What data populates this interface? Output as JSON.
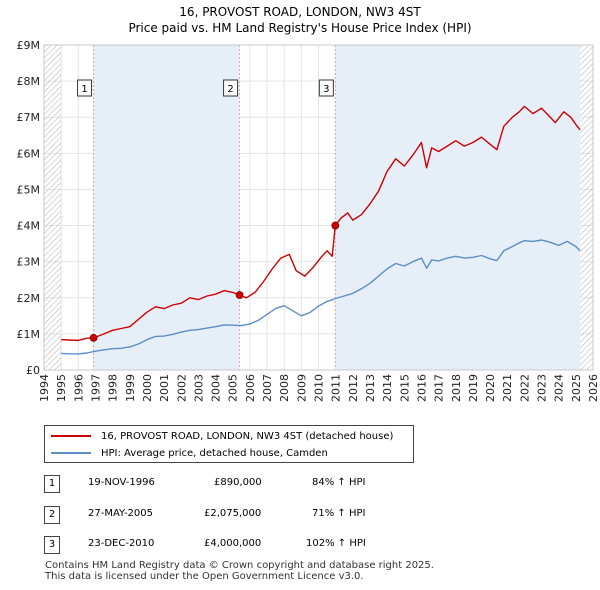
{
  "header": {
    "title": "16, PROVOST ROAD, LONDON, NW3 4ST",
    "subtitle": "Price paid vs. HM Land Registry's House Price Index (HPI)"
  },
  "colors": {
    "property_line": "#cc0000",
    "hpi_line": "#5b8ec8",
    "marker_line": "#e8a0a0",
    "shade": "#e6eef8",
    "grid": "#e4e4e4",
    "hatch": "#b0b0b0"
  },
  "chart_data": {
    "type": "line",
    "title": "16, PROVOST ROAD, LONDON, NW3 4ST",
    "subtitle": "Price paid vs. HM Land Registry's House Price Index (HPI)",
    "xlim": [
      1994,
      2026
    ],
    "ylim": [
      0,
      9000000
    ],
    "x_ticks": [
      "1994",
      "1995",
      "1996",
      "1997",
      "1998",
      "1999",
      "2000",
      "2001",
      "2002",
      "2003",
      "2004",
      "2005",
      "2006",
      "2007",
      "2008",
      "2009",
      "2010",
      "2011",
      "2012",
      "2013",
      "2014",
      "2015",
      "2016",
      "2017",
      "2018",
      "2019",
      "2020",
      "2021",
      "2022",
      "2023",
      "2024",
      "2025",
      "2026"
    ],
    "y_ticks": [
      {
        "value": 0,
        "label": "£0"
      },
      {
        "value": 1000000,
        "label": "£1M"
      },
      {
        "value": 2000000,
        "label": "£2M"
      },
      {
        "value": 3000000,
        "label": "£3M"
      },
      {
        "value": 4000000,
        "label": "£4M"
      },
      {
        "value": 5000000,
        "label": "£5M"
      },
      {
        "value": 6000000,
        "label": "£6M"
      },
      {
        "value": 7000000,
        "label": "£7M"
      },
      {
        "value": 8000000,
        "label": "£8M"
      },
      {
        "value": 9000000,
        "label": "£9M"
      }
    ],
    "data_start": 1995.0,
    "data_end": 2025.25,
    "series": [
      {
        "name": "16, PROVOST ROAD, LONDON, NW3 4ST (detached house)",
        "color": "#cc0000",
        "points": [
          [
            1995.0,
            840000
          ],
          [
            1995.5,
            830000
          ],
          [
            1996.0,
            820000
          ],
          [
            1996.5,
            880000
          ],
          [
            1996.89,
            890000
          ],
          [
            1997.5,
            1000000
          ],
          [
            1998.0,
            1100000
          ],
          [
            1998.5,
            1150000
          ],
          [
            1999.0,
            1200000
          ],
          [
            1999.5,
            1400000
          ],
          [
            2000.0,
            1600000
          ],
          [
            2000.5,
            1750000
          ],
          [
            2001.0,
            1700000
          ],
          [
            2001.5,
            1800000
          ],
          [
            2002.0,
            1850000
          ],
          [
            2002.5,
            2000000
          ],
          [
            2003.0,
            1950000
          ],
          [
            2003.5,
            2050000
          ],
          [
            2004.0,
            2100000
          ],
          [
            2004.5,
            2200000
          ],
          [
            2005.0,
            2150000
          ],
          [
            2005.4,
            2075000
          ],
          [
            2005.8,
            2000000
          ],
          [
            2006.3,
            2150000
          ],
          [
            2006.8,
            2450000
          ],
          [
            2007.3,
            2800000
          ],
          [
            2007.8,
            3100000
          ],
          [
            2008.3,
            3200000
          ],
          [
            2008.7,
            2750000
          ],
          [
            2009.2,
            2600000
          ],
          [
            2009.7,
            2850000
          ],
          [
            2010.2,
            3150000
          ],
          [
            2010.5,
            3300000
          ],
          [
            2010.8,
            3150000
          ],
          [
            2010.98,
            4000000
          ],
          [
            2011.3,
            4200000
          ],
          [
            2011.7,
            4350000
          ],
          [
            2012.0,
            4150000
          ],
          [
            2012.5,
            4300000
          ],
          [
            2013.0,
            4600000
          ],
          [
            2013.5,
            4950000
          ],
          [
            2014.0,
            5500000
          ],
          [
            2014.5,
            5850000
          ],
          [
            2015.0,
            5650000
          ],
          [
            2015.5,
            5950000
          ],
          [
            2016.0,
            6300000
          ],
          [
            2016.3,
            5600000
          ],
          [
            2016.6,
            6150000
          ],
          [
            2017.0,
            6050000
          ],
          [
            2017.5,
            6200000
          ],
          [
            2018.0,
            6350000
          ],
          [
            2018.5,
            6200000
          ],
          [
            2019.0,
            6300000
          ],
          [
            2019.5,
            6450000
          ],
          [
            2020.0,
            6250000
          ],
          [
            2020.4,
            6100000
          ],
          [
            2020.8,
            6750000
          ],
          [
            2021.3,
            7000000
          ],
          [
            2021.7,
            7150000
          ],
          [
            2022.0,
            7300000
          ],
          [
            2022.5,
            7100000
          ],
          [
            2023.0,
            7250000
          ],
          [
            2023.4,
            7050000
          ],
          [
            2023.8,
            6850000
          ],
          [
            2024.3,
            7150000
          ],
          [
            2024.7,
            7000000
          ],
          [
            2025.0,
            6800000
          ],
          [
            2025.25,
            6650000
          ]
        ]
      },
      {
        "name": "HPI: Average price, detached house, Camden",
        "color": "#5b8ec8",
        "points": [
          [
            1995.0,
            460000
          ],
          [
            1995.5,
            450000
          ],
          [
            1996.0,
            445000
          ],
          [
            1996.5,
            470000
          ],
          [
            1997.0,
            520000
          ],
          [
            1997.5,
            560000
          ],
          [
            1998.0,
            590000
          ],
          [
            1998.5,
            600000
          ],
          [
            1999.0,
            640000
          ],
          [
            1999.5,
            720000
          ],
          [
            2000.0,
            840000
          ],
          [
            2000.5,
            930000
          ],
          [
            2001.0,
            940000
          ],
          [
            2001.5,
            990000
          ],
          [
            2002.0,
            1050000
          ],
          [
            2002.5,
            1100000
          ],
          [
            2003.0,
            1120000
          ],
          [
            2003.5,
            1160000
          ],
          [
            2004.0,
            1200000
          ],
          [
            2004.5,
            1250000
          ],
          [
            2005.0,
            1240000
          ],
          [
            2005.5,
            1230000
          ],
          [
            2006.0,
            1270000
          ],
          [
            2006.5,
            1380000
          ],
          [
            2007.0,
            1540000
          ],
          [
            2007.5,
            1700000
          ],
          [
            2008.0,
            1780000
          ],
          [
            2008.5,
            1640000
          ],
          [
            2009.0,
            1500000
          ],
          [
            2009.5,
            1590000
          ],
          [
            2010.0,
            1770000
          ],
          [
            2010.5,
            1900000
          ],
          [
            2011.0,
            1980000
          ],
          [
            2011.5,
            2050000
          ],
          [
            2012.0,
            2120000
          ],
          [
            2012.5,
            2250000
          ],
          [
            2013.0,
            2400000
          ],
          [
            2013.5,
            2600000
          ],
          [
            2014.0,
            2800000
          ],
          [
            2014.5,
            2950000
          ],
          [
            2015.0,
            2880000
          ],
          [
            2015.5,
            3000000
          ],
          [
            2016.0,
            3100000
          ],
          [
            2016.3,
            2820000
          ],
          [
            2016.6,
            3050000
          ],
          [
            2017.0,
            3020000
          ],
          [
            2017.5,
            3100000
          ],
          [
            2018.0,
            3150000
          ],
          [
            2018.5,
            3100000
          ],
          [
            2019.0,
            3120000
          ],
          [
            2019.5,
            3170000
          ],
          [
            2020.0,
            3080000
          ],
          [
            2020.4,
            3030000
          ],
          [
            2020.8,
            3300000
          ],
          [
            2021.3,
            3420000
          ],
          [
            2021.7,
            3520000
          ],
          [
            2022.0,
            3580000
          ],
          [
            2022.5,
            3560000
          ],
          [
            2023.0,
            3600000
          ],
          [
            2023.5,
            3540000
          ],
          [
            2024.0,
            3450000
          ],
          [
            2024.5,
            3560000
          ],
          [
            2025.0,
            3420000
          ],
          [
            2025.25,
            3300000
          ]
        ]
      }
    ],
    "sales": [
      {
        "label": "1",
        "x": 1996.89,
        "y": 890000
      },
      {
        "label": "2",
        "x": 2005.4,
        "y": 2075000
      },
      {
        "label": "3",
        "x": 2010.98,
        "y": 4000000
      }
    ]
  },
  "legend": {
    "property": "16, PROVOST ROAD, LONDON, NW3 4ST (detached house)",
    "hpi": "HPI: Average price, detached house, Camden"
  },
  "sales_table": [
    {
      "num": "1",
      "date": "19-NOV-1996",
      "price": "£890,000",
      "hpi": "84% ↑ HPI"
    },
    {
      "num": "2",
      "date": "27-MAY-2005",
      "price": "£2,075,000",
      "hpi": "71% ↑ HPI"
    },
    {
      "num": "3",
      "date": "23-DEC-2010",
      "price": "£4,000,000",
      "hpi": "102% ↑ HPI"
    }
  ],
  "footer": {
    "line1": "Contains HM Land Registry data © Crown copyright and database right 2025.",
    "line2": "This data is licensed under the Open Government Licence v3.0."
  }
}
